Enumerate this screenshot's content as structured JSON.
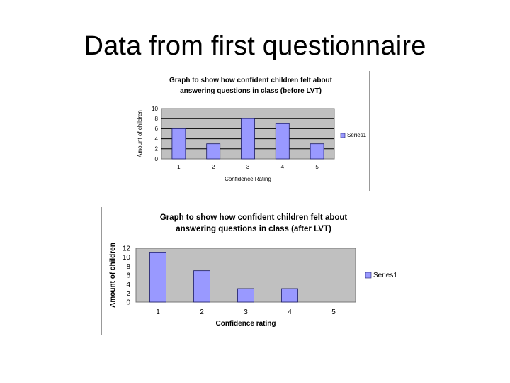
{
  "slide": {
    "title": "Data from first questionnaire"
  },
  "colors": {
    "bar": "#9999ff",
    "bar_stroke": "#1a1a66",
    "plot_bg": "#c0c0c0",
    "grid": "#000000"
  },
  "chart_data": [
    {
      "type": "bar",
      "title": "Graph to show how confident children felt about answering questions in class (before LVT)",
      "title_lines": [
        "Graph to show how confident children felt about",
        "answering questions in class (before LVT)"
      ],
      "xlabel": "Confidence Rating",
      "ylabel": "Amount of children",
      "categories": [
        "1",
        "2",
        "3",
        "4",
        "5"
      ],
      "series": [
        {
          "name": "Series1",
          "values": [
            6,
            3,
            8,
            7,
            3
          ]
        }
      ],
      "ylim": [
        0,
        10
      ],
      "yticks": [
        "0",
        "2",
        "4",
        "6",
        "8",
        "10"
      ],
      "grid": true,
      "legend": "right"
    },
    {
      "type": "bar",
      "title": "Graph to show how confident children felt about answering questions in class (after LVT)",
      "title_lines": [
        "Graph to show how confident children felt about",
        "answering questions in class (after LVT)"
      ],
      "xlabel": "Confidence rating",
      "ylabel": "Amount of children",
      "categories": [
        "1",
        "2",
        "3",
        "4",
        "5"
      ],
      "series": [
        {
          "name": "Series1",
          "values": [
            11,
            7,
            3,
            3,
            0
          ]
        }
      ],
      "ylim": [
        0,
        12
      ],
      "yticks": [
        "0",
        "2",
        "4",
        "6",
        "8",
        "10",
        "12"
      ],
      "grid": false,
      "legend": "right"
    }
  ]
}
